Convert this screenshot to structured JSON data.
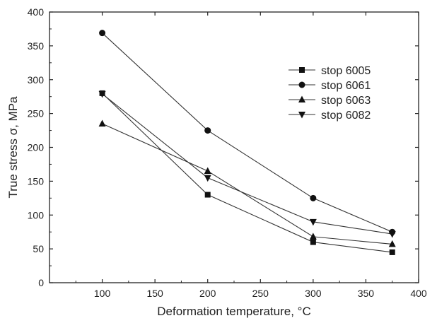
{
  "chart_data": {
    "type": "line",
    "title": "",
    "xlabel": "Deformation temperature, °C",
    "ylabel": "True stress σ, MPa",
    "xlim": [
      50,
      400
    ],
    "ylim": [
      0,
      400
    ],
    "xticks": [
      100,
      150,
      200,
      250,
      300,
      350,
      400
    ],
    "yticks": [
      0,
      50,
      100,
      150,
      200,
      250,
      300,
      350,
      400
    ],
    "grid": false,
    "legend_position": "top-right",
    "x": [
      100,
      200,
      300,
      375
    ],
    "series": [
      {
        "name": "stop 6005",
        "marker": "square",
        "values": [
          280,
          130,
          60,
          45
        ]
      },
      {
        "name": "stop 6061",
        "marker": "circle",
        "values": [
          369,
          225,
          125,
          75
        ]
      },
      {
        "name": "stop 6063",
        "marker": "triangle-up",
        "values": [
          235,
          165,
          68,
          57
        ]
      },
      {
        "name": "stop 6082",
        "marker": "triangle-down",
        "values": [
          279,
          155,
          90,
          72
        ]
      }
    ],
    "colors": {
      "line": "#333333",
      "marker": "#111111",
      "axis": "#222222"
    }
  }
}
